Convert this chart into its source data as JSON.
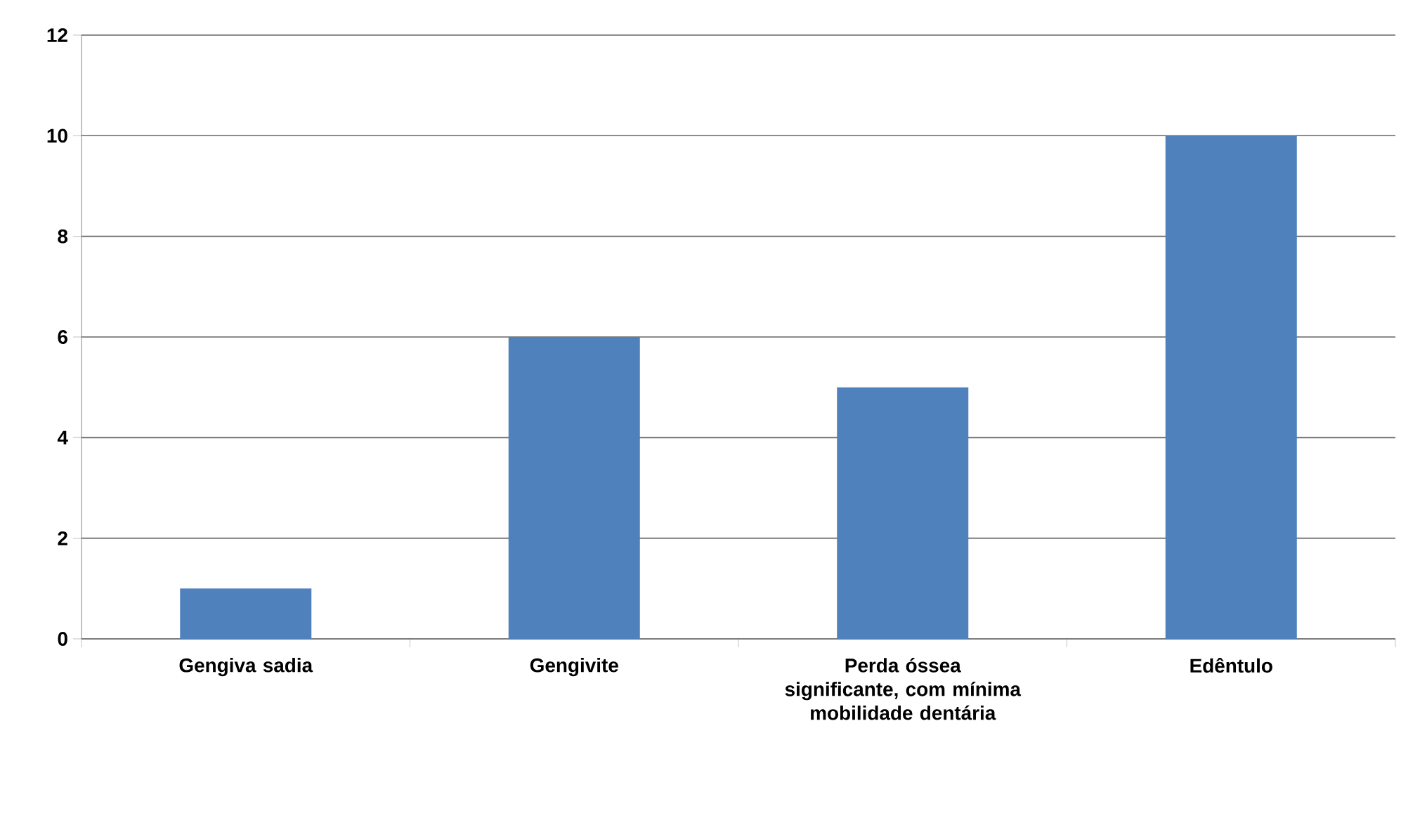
{
  "chart_data": {
    "type": "bar",
    "categories": [
      "Gengiva sadia",
      "Gengivite",
      "Perda óssea significante, com mínima mobilidade dentária",
      "Edêntulo"
    ],
    "values": [
      1,
      6,
      5,
      10
    ],
    "color": "#4f81bd",
    "ylim": [
      0,
      12
    ],
    "yticks": [
      0,
      2,
      4,
      6,
      8,
      10,
      12
    ],
    "grid": "y"
  }
}
